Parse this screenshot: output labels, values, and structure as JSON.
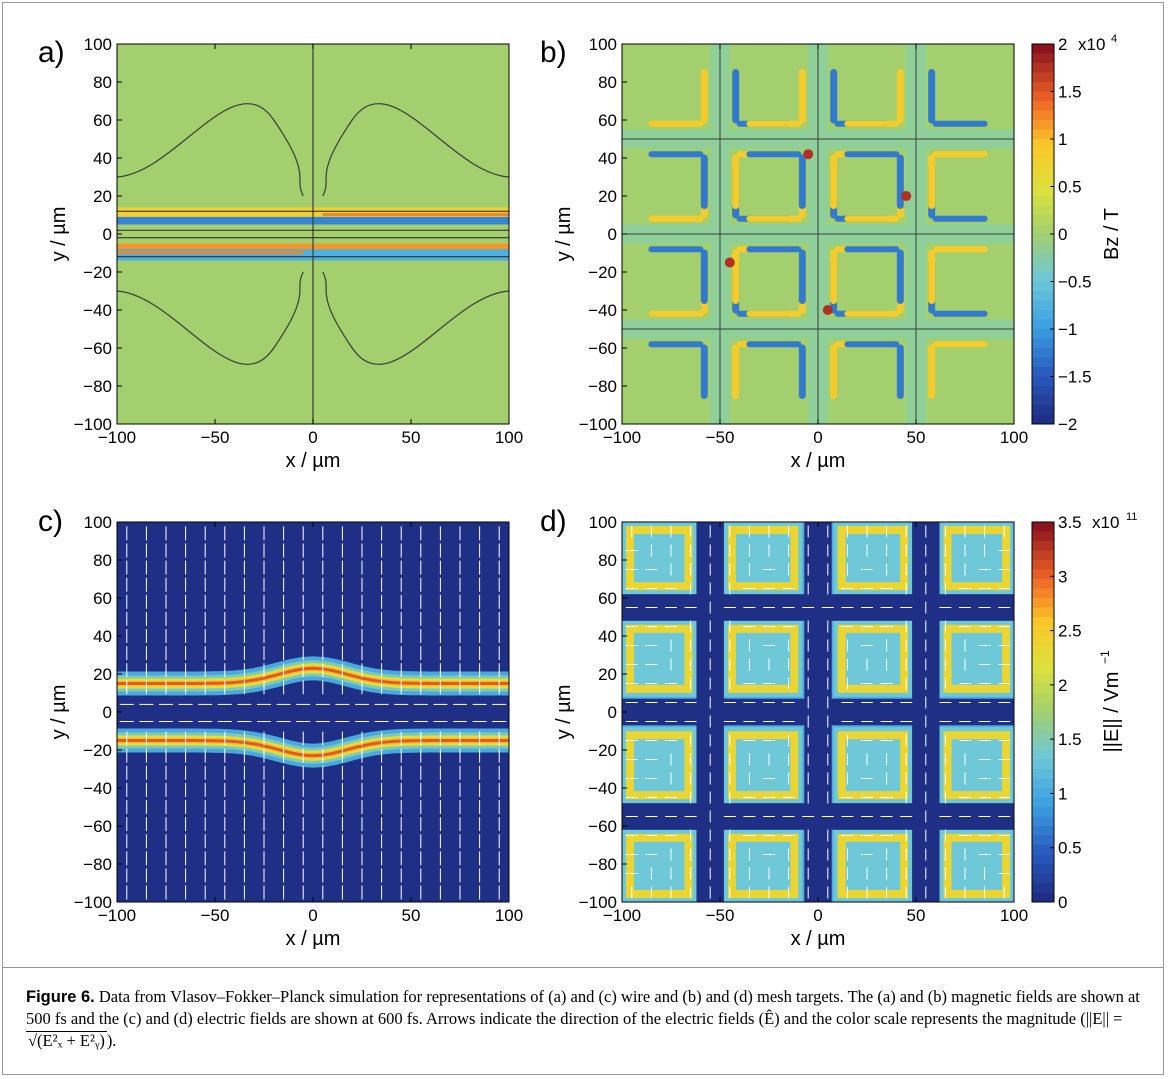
{
  "panels": {
    "a": {
      "letter": "a)"
    },
    "b": {
      "letter": "b)"
    },
    "c": {
      "letter": "c)"
    },
    "d": {
      "letter": "d)"
    }
  },
  "colors": {
    "field_bg": "#a3cf6e",
    "dark_bg": "#1f2f85",
    "grid_line": "#3c3c3c",
    "frame": "#999999"
  },
  "caption": {
    "label": "Figure 6.",
    "text": " Data from Vlasov–Fokker–Planck simulation for representations of (a) and (c) wire and (b) and (d) mesh targets. The (a) and (b) magnetic fields are shown at 500 fs and the (c) and (d) electric fields are shown at 600 fs. Arrows indicate the direction of the electric fields (Ê) and the color scale represents the magnitude (||E|| = ",
    "math": "√(E²ₓ + E²ᵧ)",
    "end": ")."
  },
  "chart_data": [
    {
      "panel": "a",
      "type": "heatmap",
      "description_visible": "Bz contour map, wire target",
      "xlabel": "x / µm",
      "ylabel": "y / µm",
      "xlim": [
        -100,
        100
      ],
      "ylim": [
        -100,
        100
      ],
      "x_ticks": [
        "−100",
        "−50",
        "0",
        "50",
        "100"
      ],
      "y_ticks": [
        "100",
        "80",
        "60",
        "40",
        "20",
        "0",
        "−20",
        "−40",
        "−60",
        "−80",
        "−100"
      ],
      "bands": [
        {
          "y_center": 11,
          "half_width": 3,
          "value": 0.8
        },
        {
          "y_center": 7,
          "half_width": 2,
          "value": -1.2
        },
        {
          "y_center": -7,
          "half_width": 2,
          "value": 1.2
        },
        {
          "y_center": -11,
          "half_width": 3,
          "value": -0.8
        }
      ]
    },
    {
      "panel": "b",
      "type": "heatmap",
      "description_visible": "Bz contour map, mesh target",
      "xlabel": "x / µm",
      "ylabel": "y / µm",
      "xlim": [
        -100,
        100
      ],
      "ylim": [
        -100,
        100
      ],
      "x_ticks": [
        "−100",
        "−50",
        "0",
        "50",
        "100"
      ],
      "y_ticks": [
        "100",
        "80",
        "60",
        "40",
        "20",
        "0",
        "−20",
        "−40",
        "−60",
        "−80",
        "−100"
      ],
      "mesh_lines": [
        -50,
        0,
        50
      ],
      "colorbar": {
        "label": "Bz / T",
        "multiplier": "x10",
        "exponent": "4",
        "range": [
          -2,
          2
        ],
        "ticks": [
          "2",
          "1.5",
          "1",
          "0.5",
          "0",
          "−0.5",
          "−1",
          "−1.5",
          "−2"
        ]
      }
    },
    {
      "panel": "c",
      "type": "heatmap",
      "description_visible": "|E| map with arrows, wire target",
      "xlabel": "x / µm",
      "ylabel": "y / µm",
      "xlim": [
        -100,
        100
      ],
      "ylim": [
        -100,
        100
      ],
      "x_ticks": [
        "−100",
        "−50",
        "0",
        "50",
        "100"
      ],
      "y_ticks": [
        "100",
        "80",
        "60",
        "40",
        "20",
        "0",
        "−20",
        "−40",
        "−60",
        "−80",
        "−100"
      ],
      "bands": [
        {
          "y_center": 15,
          "value": 2.5
        },
        {
          "y_center": -15,
          "value": 2.5
        }
      ]
    },
    {
      "panel": "d",
      "type": "heatmap",
      "description_visible": "|E| map with arrows, mesh target",
      "xlabel": "x / µm",
      "ylabel": "y / µm",
      "xlim": [
        -100,
        100
      ],
      "ylim": [
        -100,
        100
      ],
      "x_ticks": [
        "−100",
        "−50",
        "0",
        "50",
        "100"
      ],
      "y_ticks": [
        "100",
        "80",
        "60",
        "40",
        "20",
        "0",
        "−20",
        "−40",
        "−60",
        "−80",
        "−100"
      ],
      "mesh_lines": [
        -55,
        0,
        55
      ],
      "colorbar": {
        "label": "||E|| / Vm",
        "label_exp": "−1",
        "multiplier": "x10",
        "exponent": "11",
        "range": [
          0,
          3.5
        ],
        "ticks": [
          "3.5",
          "3",
          "2.5",
          "2",
          "1.5",
          "1",
          "0.5",
          "0"
        ]
      }
    }
  ]
}
